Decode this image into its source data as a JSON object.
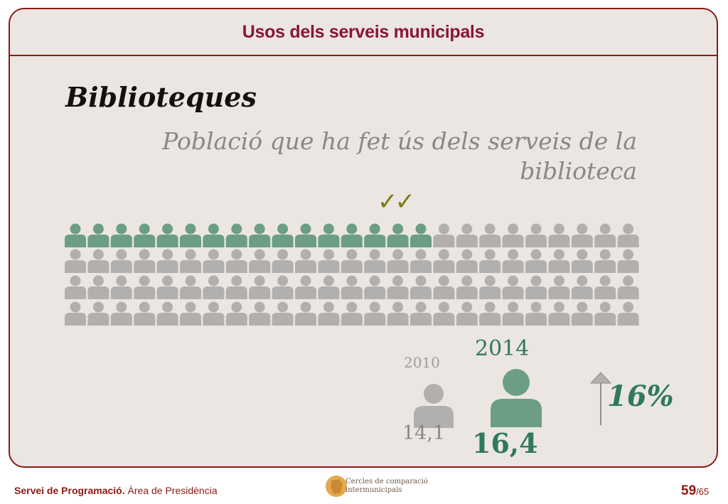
{
  "header": {
    "title": "Usos dels serveis municipals"
  },
  "section": {
    "title": "Biblioteques",
    "subtitle": "Població que ha fet ús dels serveis de la biblioteca"
  },
  "pictogram": {
    "total_icons": 100,
    "highlighted_icons": 16,
    "highlight_color": "#6c9e83",
    "base_color": "#b2b0ae",
    "check_marks": "✓✓",
    "check_color": "#7b7a16"
  },
  "comparison": {
    "year_before": "2010",
    "value_before": "14,1",
    "year_after": "2014",
    "value_after": "16,4",
    "change": "16%",
    "change_direction": "up",
    "color_before": "#b2b0ae",
    "color_after": "#6c9e83"
  },
  "footer": {
    "org_bold": "Servei de Programació.",
    "org_rest": " Àrea de Presidència",
    "logo_line1": "Cercles de comparació",
    "logo_line2": "intermunicipals",
    "page_current": "59",
    "page_total": "/65"
  },
  "colors": {
    "accent": "#8b1a12",
    "title": "#8a1538",
    "green": "#2f7a5c"
  }
}
